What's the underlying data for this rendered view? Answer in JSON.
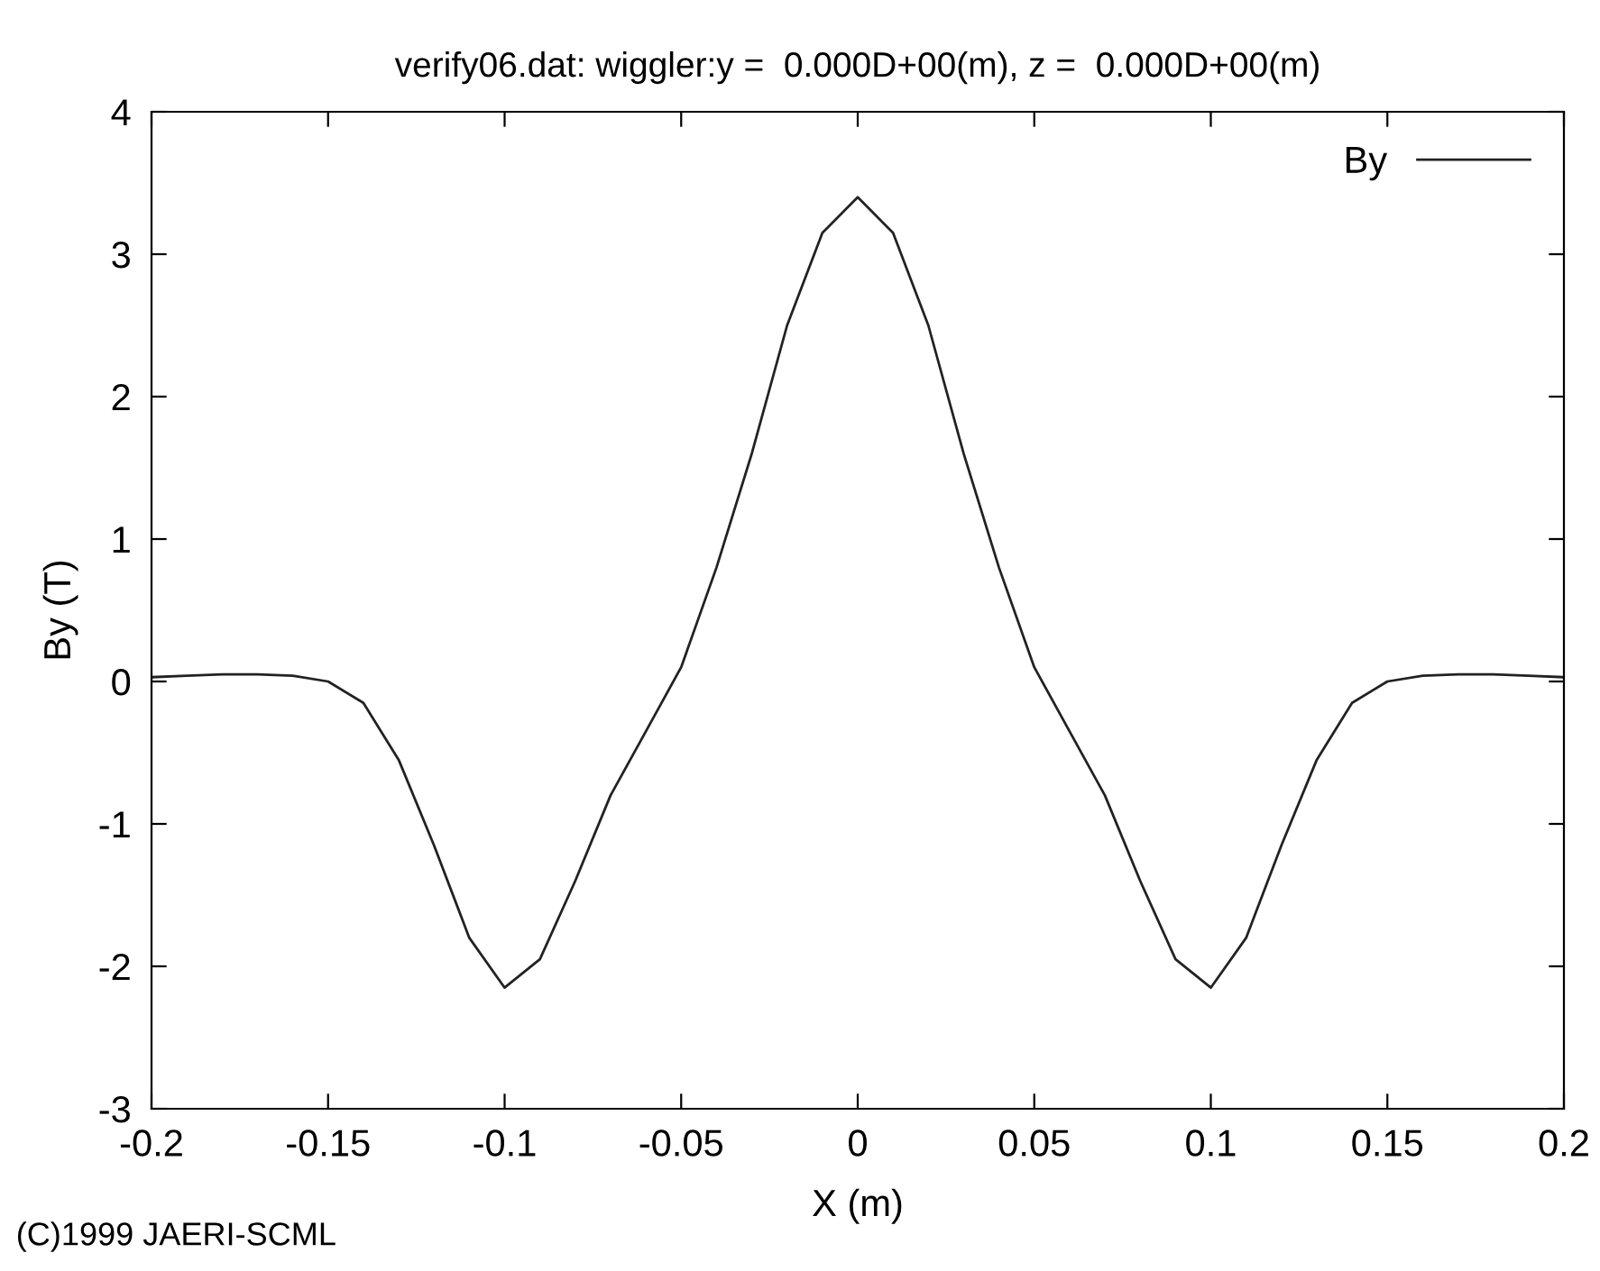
{
  "chart_data": {
    "type": "line",
    "title": "verify06.dat: wiggler:y =  0.000D+00(m), z =  0.000D+00(m)",
    "xlabel": "X (m)",
    "ylabel": "By (T)",
    "x": [
      -0.2,
      -0.19,
      -0.18,
      -0.17,
      -0.16,
      -0.15,
      -0.14,
      -0.13,
      -0.12,
      -0.11,
      -0.1,
      -0.09,
      -0.08,
      -0.07,
      -0.06,
      -0.05,
      -0.04,
      -0.03,
      -0.02,
      -0.01,
      0,
      0.01,
      0.02,
      0.03,
      0.04,
      0.05,
      0.06,
      0.07,
      0.08,
      0.09,
      0.1,
      0.11,
      0.12,
      0.13,
      0.14,
      0.15,
      0.16,
      0.17,
      0.18,
      0.19,
      0.2
    ],
    "series": [
      {
        "name": "By",
        "color": "#222222",
        "values": [
          0.03,
          0.04,
          0.05,
          0.05,
          0.04,
          0.0,
          -0.15,
          -0.55,
          -1.15,
          -1.8,
          -2.15,
          -1.95,
          -1.4,
          -0.8,
          -0.35,
          0.1,
          0.8,
          1.6,
          2.5,
          3.15,
          3.4,
          3.15,
          2.5,
          1.6,
          0.8,
          0.1,
          -0.35,
          -0.8,
          -1.4,
          -1.95,
          -2.15,
          -1.8,
          -1.15,
          -0.55,
          -0.15,
          0.0,
          0.04,
          0.05,
          0.05,
          0.04,
          0.03
        ]
      }
    ],
    "xlim": [
      -0.2,
      0.2
    ],
    "xticks": [
      -0.2,
      -0.15,
      -0.1,
      -0.05,
      0,
      0.05,
      0.1,
      0.15,
      0.2
    ],
    "ylim": [
      -3,
      4
    ],
    "yticks": [
      -3,
      -2,
      -1,
      0,
      1,
      2,
      3,
      4
    ],
    "grid": false,
    "legend": "top right",
    "marker": "none",
    "line_style": "solid",
    "annotations": [
      "(C)1999 JAERI-SCML"
    ]
  }
}
